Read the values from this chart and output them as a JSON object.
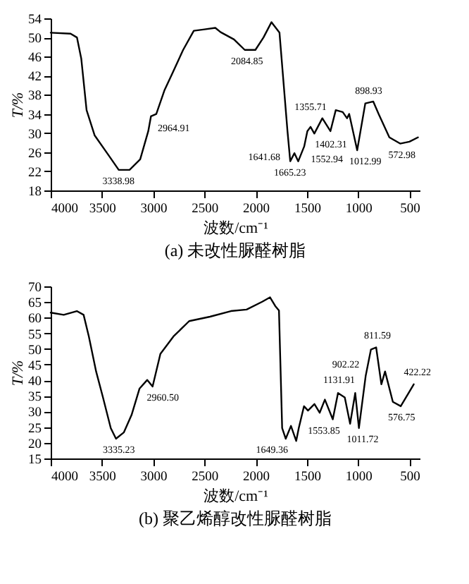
{
  "chart_data": [
    {
      "type": "line",
      "title": "(a) 未改性脲醛树脂",
      "xlabel": "波数/cm⁻¹",
      "ylabel": "T/%",
      "xlim": [
        4000,
        400
      ],
      "ylim": [
        18,
        54
      ],
      "xticks": [
        4000,
        3500,
        3000,
        2500,
        2000,
        1500,
        1000,
        500
      ],
      "yticks": [
        18,
        22,
        26,
        30,
        34,
        38,
        42,
        46,
        50,
        54
      ],
      "x": [
        4000,
        3806,
        3744,
        3702,
        3650,
        3571,
        3440,
        3336,
        3231,
        3127,
        3048,
        3022,
        2970,
        2891,
        2813,
        2708,
        2604,
        2499,
        2394,
        2342,
        2212,
        2107,
        2003,
        1924,
        1846,
        1768,
        1690,
        1663,
        1622,
        1585,
        1527,
        1496,
        1465,
        1428,
        1350,
        1271,
        1219,
        1151,
        1109,
        1088,
        1010,
        931,
        853,
        801,
        696,
        591,
        500,
        417
      ],
      "series": [
        {
          "color": "#000000",
          "values": [
            51.0,
            50.8,
            50,
            45.6,
            34.8,
            29.5,
            25.5,
            22.3,
            22.3,
            24.5,
            30.4,
            33.5,
            34,
            38.9,
            42.5,
            47.4,
            51.4,
            51.7,
            52,
            51.1,
            49.6,
            47.4,
            47.4,
            50,
            53.2,
            51,
            30.4,
            24.1,
            25.8,
            24.1,
            27.2,
            30.4,
            31.3,
            29.9,
            33.1,
            30.4,
            34.8,
            34.4,
            33.1,
            34,
            26.4,
            36.2,
            36.6,
            34,
            29.1,
            27.8,
            28.2,
            29.1
          ]
        }
      ],
      "annotations": [
        {
          "text": "3338.98",
          "x": 3338.98,
          "y": 22.3
        },
        {
          "text": "2964.91",
          "x": 2964.91,
          "y": 34
        },
        {
          "text": "2084.85",
          "x": 2084.85,
          "y": 47.4
        },
        {
          "text": "1665.23",
          "x": 1665.23,
          "y": 24.1
        },
        {
          "text": "1641.68",
          "x": 1641.68,
          "y": 25
        },
        {
          "text": "1552.94",
          "x": 1552.94,
          "y": 24.5
        },
        {
          "text": "1402.31",
          "x": 1402.31,
          "y": 30
        },
        {
          "text": "1355.71",
          "x": 1355.71,
          "y": 33
        },
        {
          "text": "1012.99",
          "x": 1012.99,
          "y": 26.4
        },
        {
          "text": "898.93",
          "x": 898.93,
          "y": 36.4
        },
        {
          "text": "572.98",
          "x": 572.98,
          "y": 27.8
        }
      ]
    },
    {
      "type": "line",
      "title": "(b) 聚乙烯醇改性脲醛树脂",
      "xlabel": "波数/cm⁻¹",
      "ylabel": "T/%",
      "xlim": [
        4000,
        400
      ],
      "ylim": [
        15,
        70
      ],
      "xticks": [
        4000,
        3500,
        3000,
        2500,
        2000,
        1500,
        1000,
        500
      ],
      "yticks": [
        15,
        20,
        25,
        30,
        35,
        40,
        45,
        50,
        55,
        60,
        65,
        70
      ],
      "x": [
        4000,
        3873,
        3745,
        3679,
        3628,
        3557,
        3490,
        3414,
        3363,
        3287,
        3211,
        3134,
        3058,
        3006,
        2930,
        2802,
        2649,
        2446,
        2242,
        2089,
        1936,
        1860,
        1809,
        1773,
        1742,
        1707,
        1656,
        1605,
        1580,
        1529,
        1490,
        1427,
        1376,
        1325,
        1248,
        1197,
        1131,
        1079,
        1029,
        993,
        927,
        876,
        825,
        774,
        738,
        662,
        585,
        509,
        458
      ],
      "series": [
        {
          "color": "#000000",
          "values": [
            61.6,
            60.9,
            62.1,
            60.9,
            54,
            42.8,
            34.5,
            24.7,
            21.3,
            23.3,
            28.9,
            37.3,
            40.1,
            38,
            48.4,
            54,
            58.9,
            60.3,
            62.1,
            62.6,
            65.1,
            66.5,
            63.7,
            62.3,
            24.7,
            21.3,
            25.4,
            20.6,
            24.7,
            31.7,
            30.3,
            32.4,
            29.6,
            33.8,
            27.5,
            35.9,
            34.5,
            26.1,
            35.9,
            24.7,
            41.4,
            49.8,
            50.5,
            38.7,
            42.8,
            33.1,
            31.7,
            35.9,
            38.7
          ]
        }
      ],
      "annotations": [
        {
          "text": "3335.23",
          "x": 3335.23,
          "y": 21.3
        },
        {
          "text": "2960.50",
          "x": 2960.5,
          "y": 38
        },
        {
          "text": "1649.36",
          "x": 1649.36,
          "y": 24
        },
        {
          "text": "1553.85",
          "x": 1553.85,
          "y": 24.7
        },
        {
          "text": "1131.91",
          "x": 1131.91,
          "y": 34.5
        },
        {
          "text": "1011.72",
          "x": 1011.72,
          "y": 24.7
        },
        {
          "text": "902.22",
          "x": 902.22,
          "y": 45
        },
        {
          "text": "811.59",
          "x": 811.59,
          "y": 48
        },
        {
          "text": "576.75",
          "x": 576.75,
          "y": 31.7
        },
        {
          "text": "422.22",
          "x": 422.22,
          "y": 38
        }
      ]
    }
  ]
}
